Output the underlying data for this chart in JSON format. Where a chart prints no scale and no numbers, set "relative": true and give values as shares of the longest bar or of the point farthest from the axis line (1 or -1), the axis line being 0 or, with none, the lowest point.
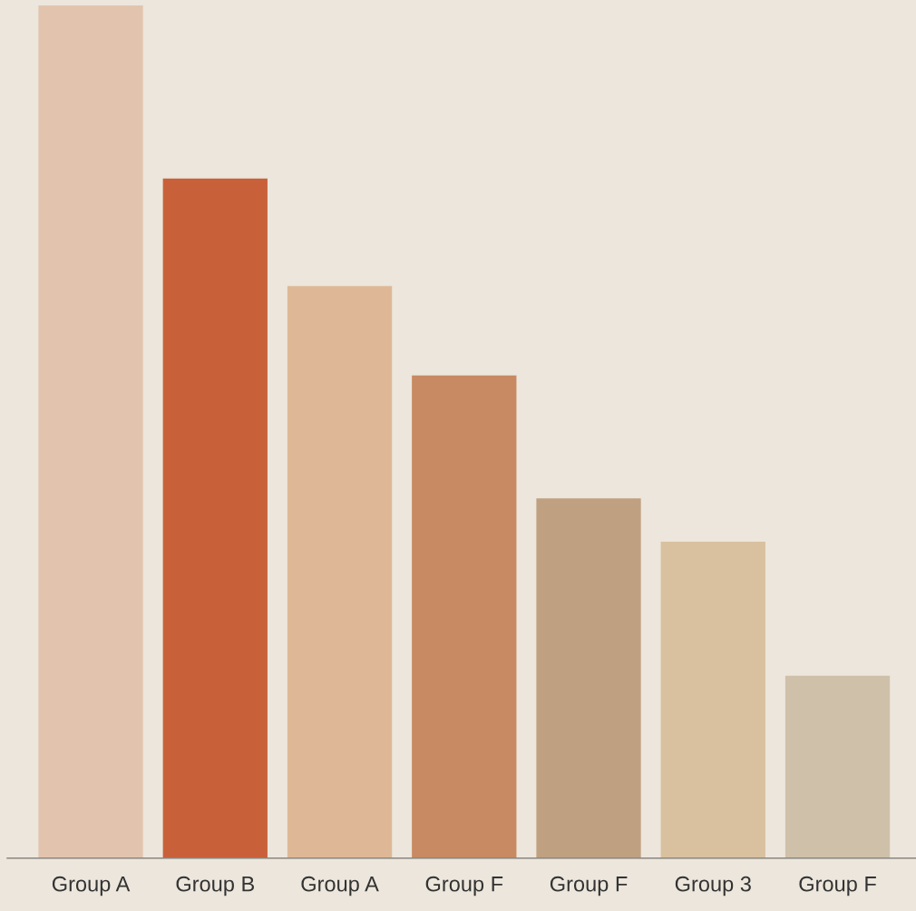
{
  "chart_data": {
    "type": "bar",
    "relative": true,
    "categories": [
      "Group A",
      "Group B",
      "Group A",
      "Group F",
      "Group F",
      "Group 3",
      "Group F"
    ],
    "values": [
      1,
      0.797,
      0.671,
      0.566,
      0.422,
      0.371,
      0.214
    ],
    "colors": [
      "#e2c4ae",
      "#c8613a",
      "#deb896",
      "#c88a62",
      "#bfa080",
      "#d9c1a0",
      "#cfc0aa"
    ],
    "grid": false,
    "legend": false
  }
}
